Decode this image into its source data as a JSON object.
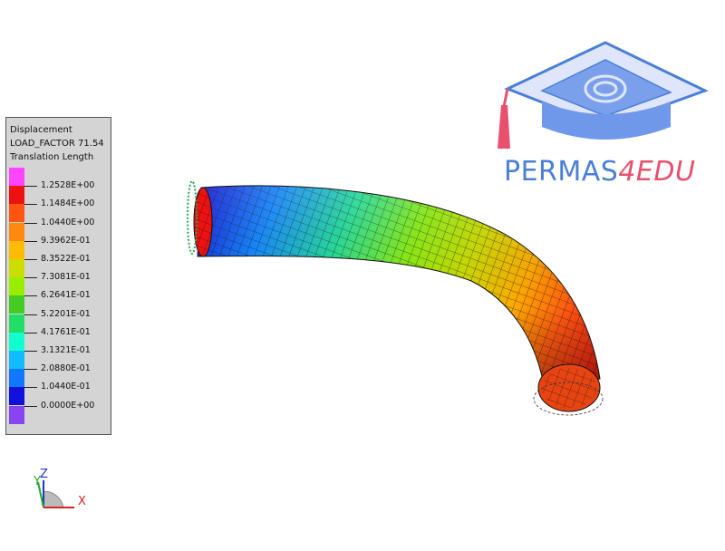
{
  "legend": {
    "line1": "Displacement",
    "line2": "LOAD_FACTOR 71.54",
    "line3": "Translation Length",
    "colors": [
      "#ff44ff",
      "#ee1111",
      "#ff5511",
      "#ff8811",
      "#ffbb00",
      "#ccdd00",
      "#99ee00",
      "#44cc22",
      "#22dd66",
      "#11ffcc",
      "#11bbff",
      "#1177ff",
      "#1111dd",
      "#8844ee"
    ],
    "labels": [
      "1.2528E+00",
      "1.1484E+00",
      "1.0440E+00",
      "9.3962E-01",
      "8.3522E-01",
      "7.3081E-01",
      "6.2641E-01",
      "5.2201E-01",
      "4.1761E-01",
      "3.1321E-01",
      "2.0880E-01",
      "1.0440E-01",
      "0.0000E+00"
    ]
  },
  "logo": {
    "brand": "PERMAS",
    "accent": "4EDU"
  },
  "axes": {
    "x": "X",
    "y": "Y",
    "z": "Z"
  }
}
